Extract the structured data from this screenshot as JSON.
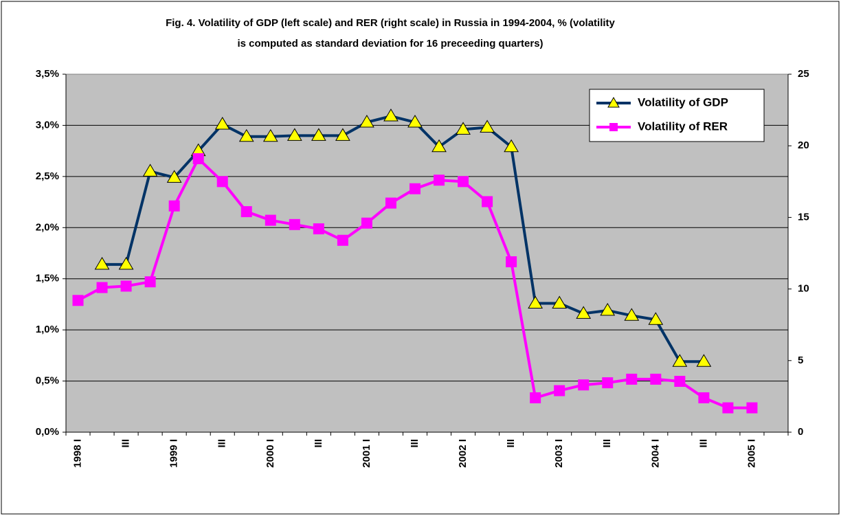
{
  "chart_data": {
    "type": "line",
    "title": [
      "Fig. 4. Volatility of GDP (left scale) and RER (right scale) in Russia in 1994-2004,  % (volatility",
      "is computed as standard deviation for 16 preceeding quarters)"
    ],
    "categories": [
      "1998 I",
      null,
      "III",
      null,
      "1999 I",
      null,
      "III",
      null,
      "2000 I",
      null,
      "III",
      null,
      "2001 I",
      null,
      "III",
      null,
      "2002 I",
      null,
      "III",
      null,
      "2003 I",
      null,
      "III",
      null,
      "2004 I",
      null,
      "III",
      null,
      "2005 I",
      null
    ],
    "ylim": [
      0,
      3.5
    ],
    "yticks": [
      {
        "value": 0,
        "label": "0,0%"
      },
      {
        "value": 0.5,
        "label": "0,5%"
      },
      {
        "value": 1,
        "label": "1,0%"
      },
      {
        "value": 1.5,
        "label": "1,5%"
      },
      {
        "value": 2,
        "label": "2,0%"
      },
      {
        "value": 2.5,
        "label": "2,5%"
      },
      {
        "value": 3,
        "label": "3,0%"
      },
      {
        "value": 3.5,
        "label": "3,5%"
      }
    ],
    "y2lim": [
      0,
      25
    ],
    "y2ticks": [
      0,
      5,
      10,
      15,
      20,
      25
    ],
    "grid": true,
    "legend": "upper right",
    "series": [
      {
        "name": "Volatility of GDP",
        "color": "#003366",
        "marker": "triangle",
        "marker_color": "#ffff00",
        "values": [
          null,
          1.64,
          1.64,
          2.55,
          2.49,
          2.75,
          3.01,
          2.89,
          2.89,
          2.9,
          2.9,
          2.9,
          3.03,
          3.09,
          3.03,
          2.79,
          2.96,
          2.98,
          2.79,
          1.26,
          1.26,
          1.16,
          1.19,
          1.14,
          1.1,
          0.69,
          0.69,
          null,
          null,
          null
        ]
      },
      {
        "name": "Volatility of RER",
        "color": "#ff00ff",
        "marker": "square",
        "marker_color": "#ff00ff",
        "axis": "y2",
        "values": [
          9.2,
          10.1,
          10.2,
          10.5,
          15.8,
          19.1,
          17.5,
          15.4,
          14.8,
          14.5,
          14.2,
          13.4,
          14.6,
          16.0,
          17.0,
          17.6,
          17.5,
          16.1,
          11.9,
          2.4,
          2.9,
          3.3,
          3.45,
          3.7,
          3.7,
          3.55,
          2.4,
          1.7,
          1.7,
          null
        ]
      }
    ]
  }
}
